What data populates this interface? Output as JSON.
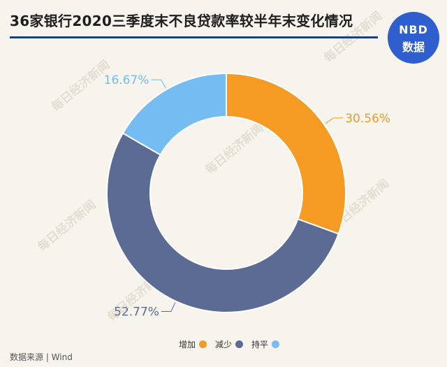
{
  "header": {
    "title": "36家银行2020三季度末不良贷款率较半年末变化情况",
    "logo_top": "NBD",
    "logo_bottom": "数据"
  },
  "footer": {
    "source": "数据来源 | Wind"
  },
  "watermark": "每日经济新闻",
  "chart_data": {
    "type": "pie",
    "donut": true,
    "title": "36家银行2020三季度末不良贷款率较半年末变化情况",
    "categories": [
      "增加",
      "减少",
      "持平"
    ],
    "values": [
      30.56,
      52.77,
      16.67
    ],
    "labels": [
      "30.56%",
      "52.77%",
      "16.67%"
    ],
    "colors": [
      "#f59a23",
      "#5b6b93",
      "#74bcf2"
    ],
    "legend_position": "bottom"
  }
}
